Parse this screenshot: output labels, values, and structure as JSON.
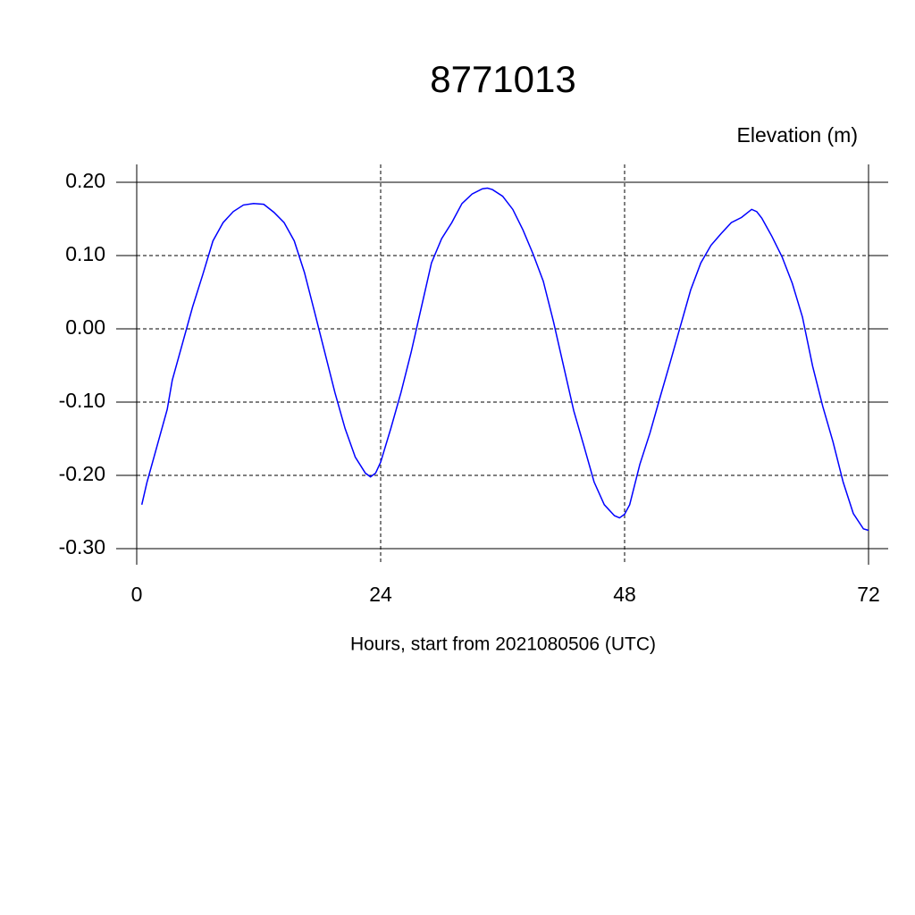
{
  "chart_data": {
    "type": "line",
    "title": "8771013",
    "ylabel": "Elevation (m)",
    "xlabel": "Hours, start from 2021080506 (UTC)",
    "x": [
      0.5,
      1,
      2,
      3,
      3.5,
      4.5,
      5.5,
      6.5,
      7.5,
      8.5,
      9.5,
      10.5,
      11.5,
      12.5,
      13.5,
      14.5,
      15.5,
      16.5,
      17.5,
      18.5,
      19.5,
      20.5,
      21.5,
      22.5,
      23,
      23.5,
      24,
      25,
      26,
      27,
      28,
      29,
      30,
      31,
      32,
      33,
      34,
      34.5,
      35,
      36,
      37,
      38,
      39,
      40,
      41,
      42,
      43,
      44,
      45,
      46,
      47,
      47.5,
      48,
      48.5,
      49.5,
      50.5,
      51.5,
      52.5,
      53.5,
      54.5,
      55.5,
      56.5,
      57.5,
      58.5,
      59.5,
      60.5,
      61,
      61.5,
      62.5,
      63.5,
      64.5,
      65.5,
      66.5,
      67.5,
      68.5,
      69.5,
      70.5,
      71.5,
      72
    ],
    "series": [
      {
        "name": "8771013",
        "color": "#0000ff",
        "values": [
          -0.24,
          -0.21,
          -0.16,
          -0.11,
          -0.07,
          -0.02,
          0.03,
          0.074,
          0.12,
          0.145,
          0.16,
          0.169,
          0.171,
          0.17,
          0.159,
          0.145,
          0.12,
          0.077,
          0.023,
          -0.032,
          -0.087,
          -0.136,
          -0.175,
          -0.197,
          -0.202,
          -0.197,
          -0.182,
          -0.136,
          -0.087,
          -0.032,
          0.029,
          0.09,
          0.123,
          0.145,
          0.171,
          0.184,
          0.191,
          0.192,
          0.19,
          0.181,
          0.163,
          0.135,
          0.102,
          0.065,
          0.01,
          -0.051,
          -0.112,
          -0.16,
          -0.209,
          -0.24,
          -0.255,
          -0.258,
          -0.253,
          -0.24,
          -0.185,
          -0.142,
          -0.093,
          -0.045,
          0.004,
          0.053,
          0.09,
          0.114,
          0.13,
          0.145,
          0.152,
          0.163,
          0.16,
          0.151,
          0.126,
          0.098,
          0.062,
          0.016,
          -0.051,
          -0.106,
          -0.154,
          -0.209,
          -0.252,
          -0.273,
          -0.275
        ]
      }
    ],
    "xlim": [
      0,
      72
    ],
    "xticks": [
      0,
      24,
      48,
      72
    ],
    "ylim": [
      -0.3,
      0.2
    ],
    "yticks": [
      {
        "value": 0.2,
        "label": "0.20"
      },
      {
        "value": 0.1,
        "label": "0.10"
      },
      {
        "value": 0,
        "label": "0.00"
      },
      {
        "value": -0.1,
        "label": "-0.10"
      },
      {
        "value": -0.2,
        "label": "-0.20"
      },
      {
        "value": -0.3,
        "label": "-0.30"
      }
    ],
    "grid": true
  }
}
